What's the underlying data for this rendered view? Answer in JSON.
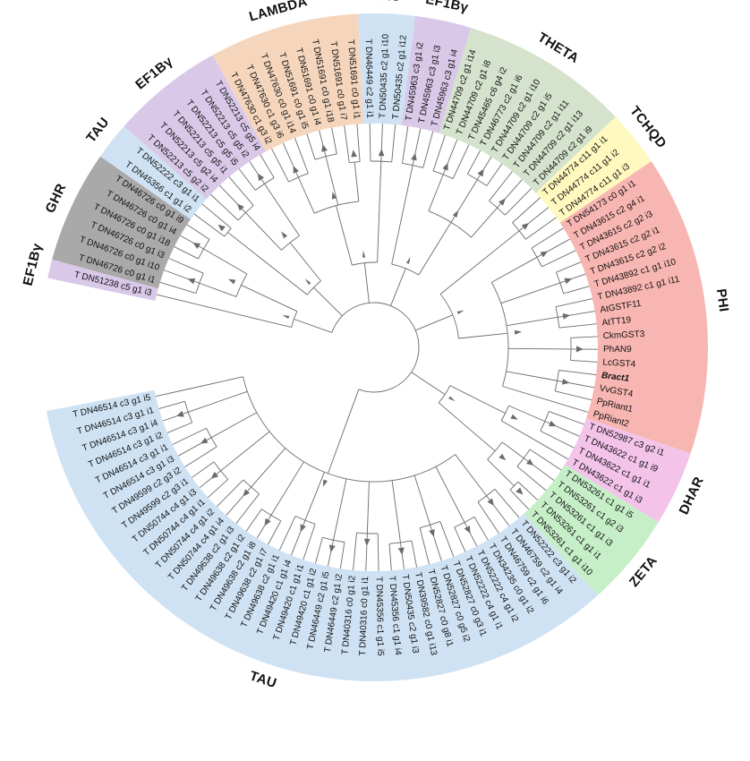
{
  "colors": {
    "TAU": "#cfe2f3",
    "EF1Bγ": "#d9c8e8",
    "GHR": "#a9a9a9",
    "LAMBDA": "#f5d6bd",
    "THETA": "#d5e3cc",
    "TCHQD": "#fff9bf",
    "PHI": "#f8b6b2",
    "DHAR": "#f3c3ea",
    "ZETA": "#c6efc8"
  },
  "clades": [
    {
      "label": "EF1Bγ",
      "color_key": "EF1Bγ",
      "leaves": [
        "T DN51238 c5 g1 i3"
      ]
    },
    {
      "label": "GHR",
      "color_key": "GHR",
      "leaves": [
        "T DN46726 c0 g1 i1",
        "T DN46726 c0 g1 i10",
        "T DN46726 c0 g1 i3",
        "T DN46726 c0 g1 i18",
        "T DN46726 c0 g1 i4",
        "T DN46726 c0 g1 i9"
      ]
    },
    {
      "label": "TAU",
      "color_key": "TAU",
      "leaves": [
        "T DN45356 c1 g1 i2",
        "T DN52222 c3 g1 i1"
      ]
    },
    {
      "label": "EF1Bγ",
      "color_key": "EF1Bγ",
      "leaves": [
        "T DN52213 c5 g2 i2",
        "T DN52213 c5 g2 i4",
        "T DN52213 c5 g5 i1",
        "T DN52213 c5 g5 i5",
        "T DN52213 c5 g5 i2",
        "T DN52213 c5 g5 i4"
      ]
    },
    {
      "label": "LAMBDA",
      "color_key": "LAMBDA",
      "leaves": [
        "T DN47630 c1 g3 i2",
        "T DN47630 c1 g3 i6",
        "T DN47630 c0 g1 i14",
        "T DN51691 c0 g1 i5",
        "T DN51691 c0 g1 i4",
        "T DN51691 c0 g1 i18",
        "T DN51691 c0 g1 i7",
        "T DN51691 c0 g1 i1"
      ]
    },
    {
      "label": "TAU",
      "color_key": "TAU",
      "leaves": [
        "T DN46449 c2 g1 i1",
        "T DN50435 c2 g1 i10",
        "T DN50435 c2 g1 i12"
      ]
    },
    {
      "label": "EF1Bγ",
      "color_key": "EF1Bγ",
      "leaves": [
        "T DN45963 c3 g1 i2",
        "T DN45963 c3 g1 i3",
        "T DN45963 c3 g1 i4"
      ]
    },
    {
      "label": "THETA",
      "color_key": "THETA",
      "leaves": [
        "T DN44709 c2 g1 i14",
        "T DN44709 c2 g1 i8",
        "T DN45465 c6 g4 i2",
        "T DN46773 c2 g1 i6",
        "T DN44709 c2 g1 i10",
        "T DN44709 c2 g1 i5",
        "T DN44709 c2 g1 i11",
        "T DN44709 c2 g1 i13",
        "T DN44709 c2 g1 i9"
      ]
    },
    {
      "label": "TCHQD",
      "color_key": "TCHQD",
      "leaves": [
        "T DN44774 c11 g1 i1",
        "T DN44774 c11 g1 i2",
        "T DN44774 c11 g1 i3"
      ]
    },
    {
      "label": "PHI",
      "color_key": "PHI",
      "leaves": [
        "T DN54173 c0 g1 i1",
        "T DN43615 c2 g4 i1",
        "T DN43615 c2 g2 i3",
        "T DN43615 c2 g2 i1",
        "T DN43615 c2 g2 i2",
        "T DN43892 c1 g1 i10",
        "T DN43892 c1 g1 i11",
        "AtGSTF11",
        "AtTT19",
        "CkmGST3",
        "PhAN9",
        "LcGST4",
        "Bract1",
        "VvGST4",
        "PpRiant1",
        "PpRiant2"
      ]
    },
    {
      "label": "DHAR",
      "color_key": "DHAR",
      "leaves": [
        "T DN52987 c3 g2 i1",
        "T DN43622 c1 g1 i9",
        "T DN43622 c1 g1 i1",
        "T DN43622 c1 g1 i3"
      ]
    },
    {
      "label": "ZETA",
      "color_key": "ZETA",
      "leaves": [
        "T DN53261 c1 g1 i5",
        "T DN53261 c1 g2 i3",
        "T DN53261 c1 g1 i3",
        "T DN53261 c1 g1 i1",
        "T DN53261 c1 g1 i10"
      ]
    },
    {
      "label": "TAU",
      "color_key": "TAU",
      "leaves": [
        "T DN52222 c3 g1 i2",
        "T DN46759 c2 g1 i4",
        "T DN46759 c2 g1 i6",
        "T DN34235 c0 g1 i2",
        "T DN52222 c4 g1 i2",
        "T DN52222 c4 g1 i1",
        "T DN52827 c0 g3 i1",
        "T DN52827 c0 g5 i2",
        "T DN52827 c0 g8 i1",
        "T DN39582 c0 g1 i13",
        "T DN50435 c2 g1 i3",
        "T DN45356 c1 g1 i4",
        "T DN45356 c1 g1 i5",
        "T DN40316 c0 g1 i1",
        "T DN40316 c0 g1 i2",
        "T DN46449 c2 g1 i2",
        "T DN46449 c2 g1 i5",
        "T DN49420 c1 g1 i2",
        "T DN49420 c1 g1 i1",
        "T DN49420 c1 g1 i4",
        "T DN49638 c2 g1 i1",
        "T DN49638 c2 g1 i7",
        "T DN49638 c2 g1 i8",
        "T DN49638 c2 g1 i2",
        "T DN49638 c2 g1 i3",
        "T DN50744 c4 g1 i4",
        "T DN50744 c4 g1 i2",
        "T DN50744 c4 g1 i1",
        "T DN50744 c4 g1 i3",
        "T DN49599 c2 g3 i1",
        "T DN49599 c2 g3 i2",
        "T DN46514 c3 g1 i3",
        "T DN46514 c3 g1 i1",
        "T DN46514 c3 g1 i2",
        "T DN46514 c3 g1 i4",
        "T DN46514 c3 g1 i1",
        "T DN46514 c3 g1 i5"
      ]
    }
  ]
}
